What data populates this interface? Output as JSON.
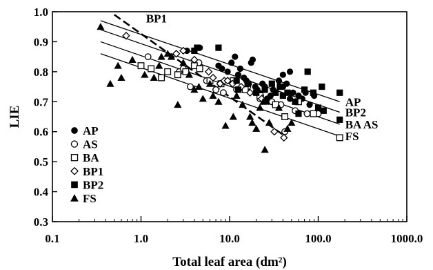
{
  "chart_data": {
    "type": "scatter",
    "title": "",
    "xlabel": "Total leaf area (dm²)",
    "ylabel": "LIE",
    "xscale": "log",
    "xlim": [
      0.1,
      1000
    ],
    "ylim": [
      0.3,
      1.0
    ],
    "xticks": [
      0.1,
      1,
      10,
      100,
      1000
    ],
    "xtick_labels": [
      "0.1",
      "1.0",
      "10.0",
      "100.0",
      "1000.0"
    ],
    "yticks": [
      0.3,
      0.4,
      0.5,
      0.6,
      0.7,
      0.8,
      0.9,
      1.0
    ],
    "ytick_labels": [
      "0.3",
      "0.4",
      "0.5",
      "0.6",
      "0.7",
      "0.8",
      "0.9",
      "1.0"
    ],
    "grid": false,
    "legend_position": "bottom-left",
    "series": [
      {
        "name": "AP",
        "marker": "filled-circle",
        "points": [
          [
            3.3,
            0.87
          ],
          [
            4.6,
            0.88
          ],
          [
            7.5,
            0.82
          ],
          [
            8.2,
            0.81
          ],
          [
            9.5,
            0.8
          ],
          [
            10.5,
            0.83
          ],
          [
            11.5,
            0.85
          ],
          [
            12.5,
            0.79
          ],
          [
            13.2,
            0.81
          ],
          [
            14.5,
            0.78
          ],
          [
            15.5,
            0.77
          ],
          [
            16.5,
            0.76
          ],
          [
            17.5,
            0.83
          ],
          [
            18.2,
            0.84
          ],
          [
            19.5,
            0.75
          ],
          [
            20.5,
            0.74
          ],
          [
            21.5,
            0.73
          ],
          [
            22.5,
            0.72
          ],
          [
            23.5,
            0.76
          ],
          [
            25.0,
            0.75
          ],
          [
            26.5,
            0.71
          ],
          [
            27.5,
            0.7
          ],
          [
            29.0,
            0.72
          ],
          [
            31.0,
            0.74
          ],
          [
            33.0,
            0.73
          ],
          [
            36.0,
            0.77
          ],
          [
            40.0,
            0.75
          ],
          [
            44.0,
            0.76
          ],
          [
            48.0,
            0.71
          ],
          [
            52.0,
            0.73
          ],
          [
            56.0,
            0.7
          ],
          [
            60.0,
            0.72
          ],
          [
            66.0,
            0.71
          ],
          [
            72.0,
            0.73
          ],
          [
            80.0,
            0.69
          ],
          [
            90.0,
            0.72
          ],
          [
            40.0,
            0.79
          ],
          [
            48.0,
            0.8
          ]
        ]
      },
      {
        "name": "AS",
        "marker": "open-circle",
        "points": [
          [
            1.2,
            0.85
          ],
          [
            2.7,
            0.8
          ],
          [
            3.0,
            0.81
          ],
          [
            3.6,
            0.75
          ],
          [
            4.5,
            0.83
          ],
          [
            5.5,
            0.77
          ],
          [
            7.0,
            0.74
          ],
          [
            8.5,
            0.73
          ],
          [
            12.0,
            0.74
          ],
          [
            16.0,
            0.75
          ],
          [
            22.0,
            0.71
          ],
          [
            30.0,
            0.7
          ],
          [
            38.0,
            0.69
          ],
          [
            42.0,
            0.6
          ],
          [
            55.0,
            0.67
          ],
          [
            75.0,
            0.66
          ],
          [
            100.0,
            0.66
          ]
        ]
      },
      {
        "name": "BA",
        "marker": "open-square",
        "points": [
          [
            1.0,
            0.82
          ],
          [
            1.3,
            0.81
          ],
          [
            1.7,
            0.78
          ],
          [
            2.0,
            0.8
          ],
          [
            2.6,
            0.79
          ],
          [
            3.2,
            0.8
          ],
          [
            4.0,
            0.82
          ],
          [
            4.6,
            0.81
          ],
          [
            6.0,
            0.77
          ],
          [
            8.0,
            0.76
          ],
          [
            11.0,
            0.77
          ],
          [
            15.0,
            0.74
          ],
          [
            22.0,
            0.72
          ],
          [
            33.0,
            0.69
          ],
          [
            42.0,
            0.65
          ],
          [
            60.0,
            0.7
          ],
          [
            88.0,
            0.66
          ],
          [
            175.0,
            0.58
          ]
        ]
      },
      {
        "name": "BP1",
        "marker": "open-diamond",
        "points": [
          [
            0.68,
            0.92
          ],
          [
            2.5,
            0.86
          ],
          [
            3.0,
            0.87
          ],
          [
            4.0,
            0.84
          ],
          [
            5.8,
            0.8
          ],
          [
            6.5,
            0.78
          ],
          [
            7.8,
            0.76
          ],
          [
            8.7,
            0.77
          ],
          [
            9.5,
            0.77
          ],
          [
            10.8,
            0.76
          ],
          [
            13.5,
            0.75
          ],
          [
            17.0,
            0.73
          ],
          [
            23.0,
            0.71
          ],
          [
            32.0,
            0.6
          ],
          [
            41.0,
            0.58
          ]
        ]
      },
      {
        "name": "BP2",
        "marker": "filled-square",
        "points": [
          [
            4.0,
            0.87
          ],
          [
            4.3,
            0.88
          ],
          [
            7.5,
            0.88
          ],
          [
            12.0,
            0.77
          ],
          [
            12.5,
            0.74
          ],
          [
            16.0,
            0.76
          ],
          [
            20.0,
            0.73
          ],
          [
            25.0,
            0.74
          ],
          [
            30.0,
            0.76
          ],
          [
            33.0,
            0.73
          ],
          [
            37.0,
            0.75
          ],
          [
            40.0,
            0.72
          ],
          [
            45.0,
            0.73
          ],
          [
            55.0,
            0.7
          ],
          [
            60.0,
            0.66
          ],
          [
            70.0,
            0.74
          ],
          [
            76.0,
            0.8
          ],
          [
            88.0,
            0.73
          ],
          [
            100.0,
            0.68
          ],
          [
            110.0,
            0.75
          ],
          [
            115.0,
            0.67
          ],
          [
            175.0,
            0.73
          ],
          [
            175.0,
            0.64
          ]
        ]
      },
      {
        "name": "FS",
        "marker": "filled-triangle",
        "points": [
          [
            0.35,
            0.95
          ],
          [
            0.45,
            0.76
          ],
          [
            0.55,
            0.82
          ],
          [
            0.6,
            0.78
          ],
          [
            0.8,
            0.84
          ],
          [
            1.1,
            0.79
          ],
          [
            1.4,
            0.78
          ],
          [
            1.6,
            0.82
          ],
          [
            1.7,
            0.85
          ],
          [
            2.0,
            0.86
          ],
          [
            2.2,
            0.85
          ],
          [
            2.6,
            0.69
          ],
          [
            3.0,
            0.83
          ],
          [
            3.5,
            0.79
          ],
          [
            4.0,
            0.74
          ],
          [
            4.5,
            0.75
          ],
          [
            5.0,
            0.71
          ],
          [
            6.0,
            0.76
          ],
          [
            6.5,
            0.72
          ],
          [
            7.5,
            0.7
          ],
          [
            9.0,
            0.62
          ],
          [
            11.0,
            0.65
          ],
          [
            12.0,
            0.72
          ],
          [
            14.0,
            0.69
          ],
          [
            17.0,
            0.65
          ],
          [
            18.0,
            0.63
          ],
          [
            20.0,
            0.61
          ],
          [
            22.0,
            0.68
          ],
          [
            24.0,
            0.7
          ],
          [
            25.0,
            0.54
          ],
          [
            28.0,
            0.63
          ],
          [
            45.0,
            0.61
          ],
          [
            50.0,
            0.63
          ],
          [
            36.0,
            0.68
          ]
        ]
      }
    ],
    "fit_lines": [
      {
        "label": "AP",
        "style": "solid",
        "x": [
          0.35,
          175
        ],
        "y": [
          0.97,
          0.7
        ]
      },
      {
        "label": "BP2",
        "style": "solid",
        "x": [
          0.35,
          175
        ],
        "y": [
          0.94,
          0.665
        ]
      },
      {
        "label": "BA AS",
        "style": "solid",
        "x": [
          0.35,
          175
        ],
        "y": [
          0.9,
          0.625
        ]
      },
      {
        "label": "FS",
        "style": "solid",
        "x": [
          0.35,
          175
        ],
        "y": [
          0.86,
          0.585
        ]
      },
      {
        "label": "BP1",
        "style": "dashed",
        "x": [
          0.5,
          40
        ],
        "y": [
          0.99,
          0.59
        ]
      }
    ]
  }
}
